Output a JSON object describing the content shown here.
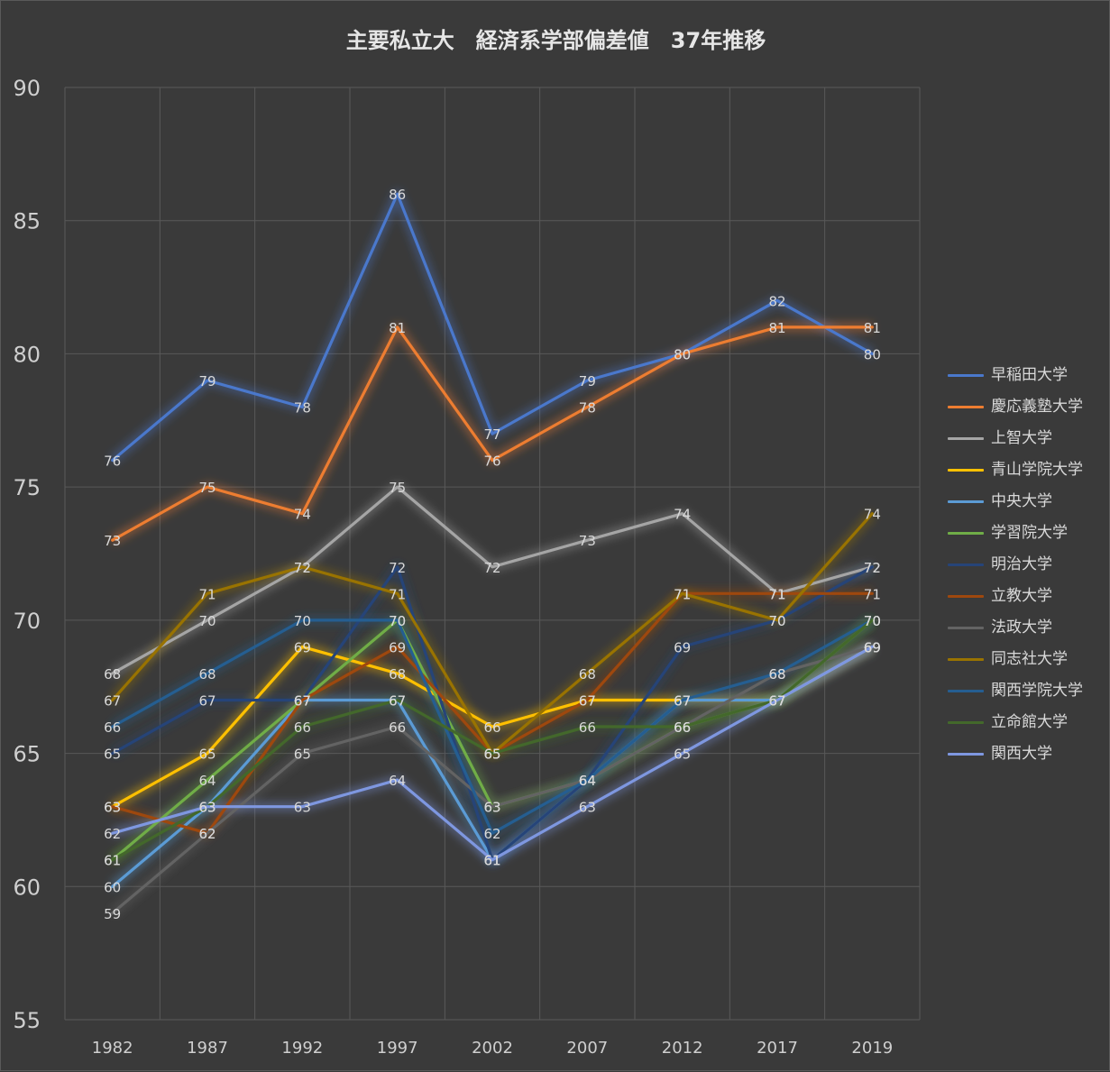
{
  "chart_data": {
    "type": "line",
    "title": "主要私立大　経済系学部偏差値　37年推移",
    "x": [
      "1982",
      "1987",
      "1992",
      "1997",
      "2002",
      "2007",
      "2012",
      "2017",
      "2019"
    ],
    "yticks": [
      "55",
      "60",
      "65",
      "70",
      "75",
      "80",
      "85",
      "90"
    ],
    "ylim": [
      55,
      90
    ],
    "legend_position": "right",
    "series": [
      {
        "name": "早稲田大学",
        "color": "#4a78cc",
        "values": [
          76,
          79,
          78,
          86,
          77,
          79,
          80,
          82,
          80
        ]
      },
      {
        "name": "慶応義塾大学",
        "color": "#ed7d31",
        "values": [
          73,
          75,
          74,
          81,
          76,
          78,
          80,
          81,
          81
        ]
      },
      {
        "name": "上智大学",
        "color": "#a5a5a5",
        "values": [
          68,
          70,
          72,
          75,
          72,
          73,
          74,
          71,
          72
        ]
      },
      {
        "name": "青山学院大学",
        "color": "#ffc000",
        "values": [
          63,
          65,
          69,
          68,
          66,
          67,
          67,
          67,
          69
        ]
      },
      {
        "name": "中央大学",
        "color": "#5b9bd5",
        "values": [
          60,
          63,
          67,
          67,
          61,
          64,
          67,
          67,
          69
        ]
      },
      {
        "name": "学習院大学",
        "color": "#70ad47",
        "values": [
          61,
          64,
          67,
          70,
          63,
          64,
          66,
          67,
          70
        ]
      },
      {
        "name": "明治大学",
        "color": "#264478",
        "values": [
          65,
          67,
          67,
          72,
          61,
          64,
          69,
          70,
          72
        ]
      },
      {
        "name": "立教大学",
        "color": "#9e480e",
        "values": [
          63,
          62,
          67,
          69,
          65,
          67,
          71,
          71,
          71
        ]
      },
      {
        "name": "法政大学",
        "color": "#636363",
        "values": [
          59,
          62,
          65,
          66,
          63,
          64,
          66,
          68,
          69
        ]
      },
      {
        "name": "同志社大学",
        "color": "#997300",
        "values": [
          67,
          71,
          72,
          71,
          65,
          68,
          71,
          70,
          74
        ]
      },
      {
        "name": "関西学院大学",
        "color": "#255e91",
        "values": [
          66,
          68,
          70,
          70,
          62,
          64,
          67,
          68,
          70
        ]
      },
      {
        "name": "立命館大学",
        "color": "#43682b",
        "values": [
          61,
          63,
          66,
          67,
          65,
          66,
          66,
          67,
          70
        ]
      },
      {
        "name": "関西大学",
        "color": "#7e97e0",
        "values": [
          62,
          63,
          63,
          64,
          61,
          63,
          65,
          67,
          69
        ]
      }
    ]
  }
}
